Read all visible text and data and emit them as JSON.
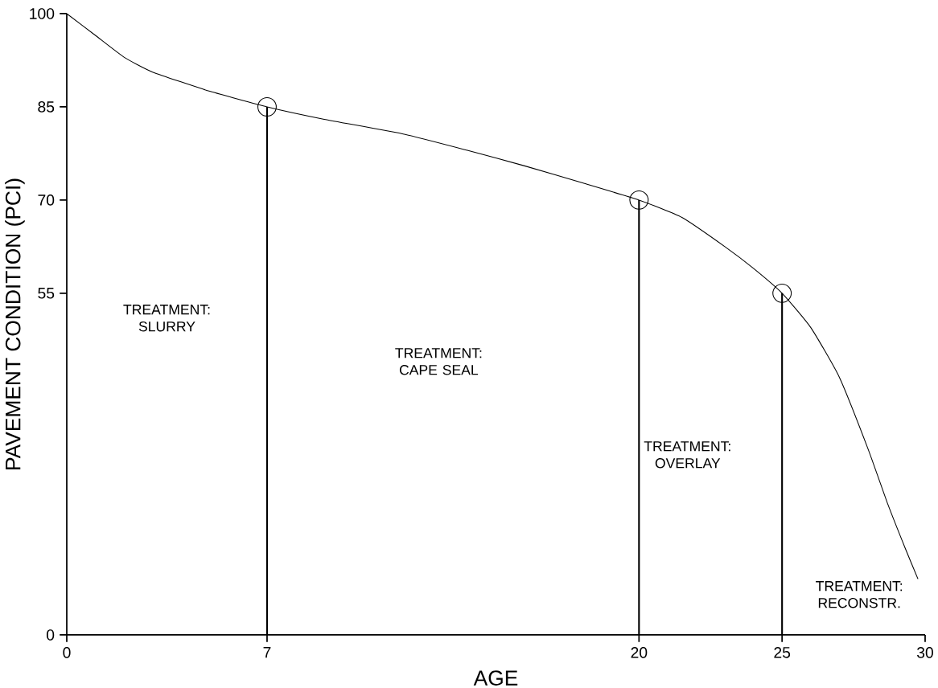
{
  "chart_data": {
    "type": "line",
    "xlabel": "AGE",
    "ylabel": "PAVEMENT CONDITION (PCI)",
    "xlim": [
      0,
      30
    ],
    "ylim": [
      0,
      100
    ],
    "xticks": [
      0,
      7,
      20,
      25,
      30
    ],
    "yticks": [
      0,
      55,
      70,
      85,
      100
    ],
    "series": [
      {
        "color": "#000000",
        "x": [
          0,
          1,
          2,
          3,
          5,
          7,
          9,
          11.7,
          14,
          16,
          18,
          20,
          21.5,
          23,
          24,
          25,
          26,
          27,
          28,
          28.7,
          29.3,
          29.75
        ],
        "values": [
          100,
          96.5,
          93,
          90.6,
          87.5,
          85,
          83,
          80.7,
          78,
          75.5,
          72.8,
          70,
          67.2,
          62.5,
          59,
          55,
          49.5,
          41.5,
          30,
          21,
          14,
          9
        ]
      },
      {
        "type": "lollipop",
        "color": "#000000",
        "marker": "circle",
        "x": [
          7,
          20,
          25
        ],
        "values": [
          85,
          70,
          55
        ]
      }
    ],
    "annotations": [
      "TREATMENT: SLURRY",
      "TREATMENT: CAPE SEAL",
      "TREATMENT: OVERLAY",
      "TREATMENT: RECONSTR."
    ]
  }
}
